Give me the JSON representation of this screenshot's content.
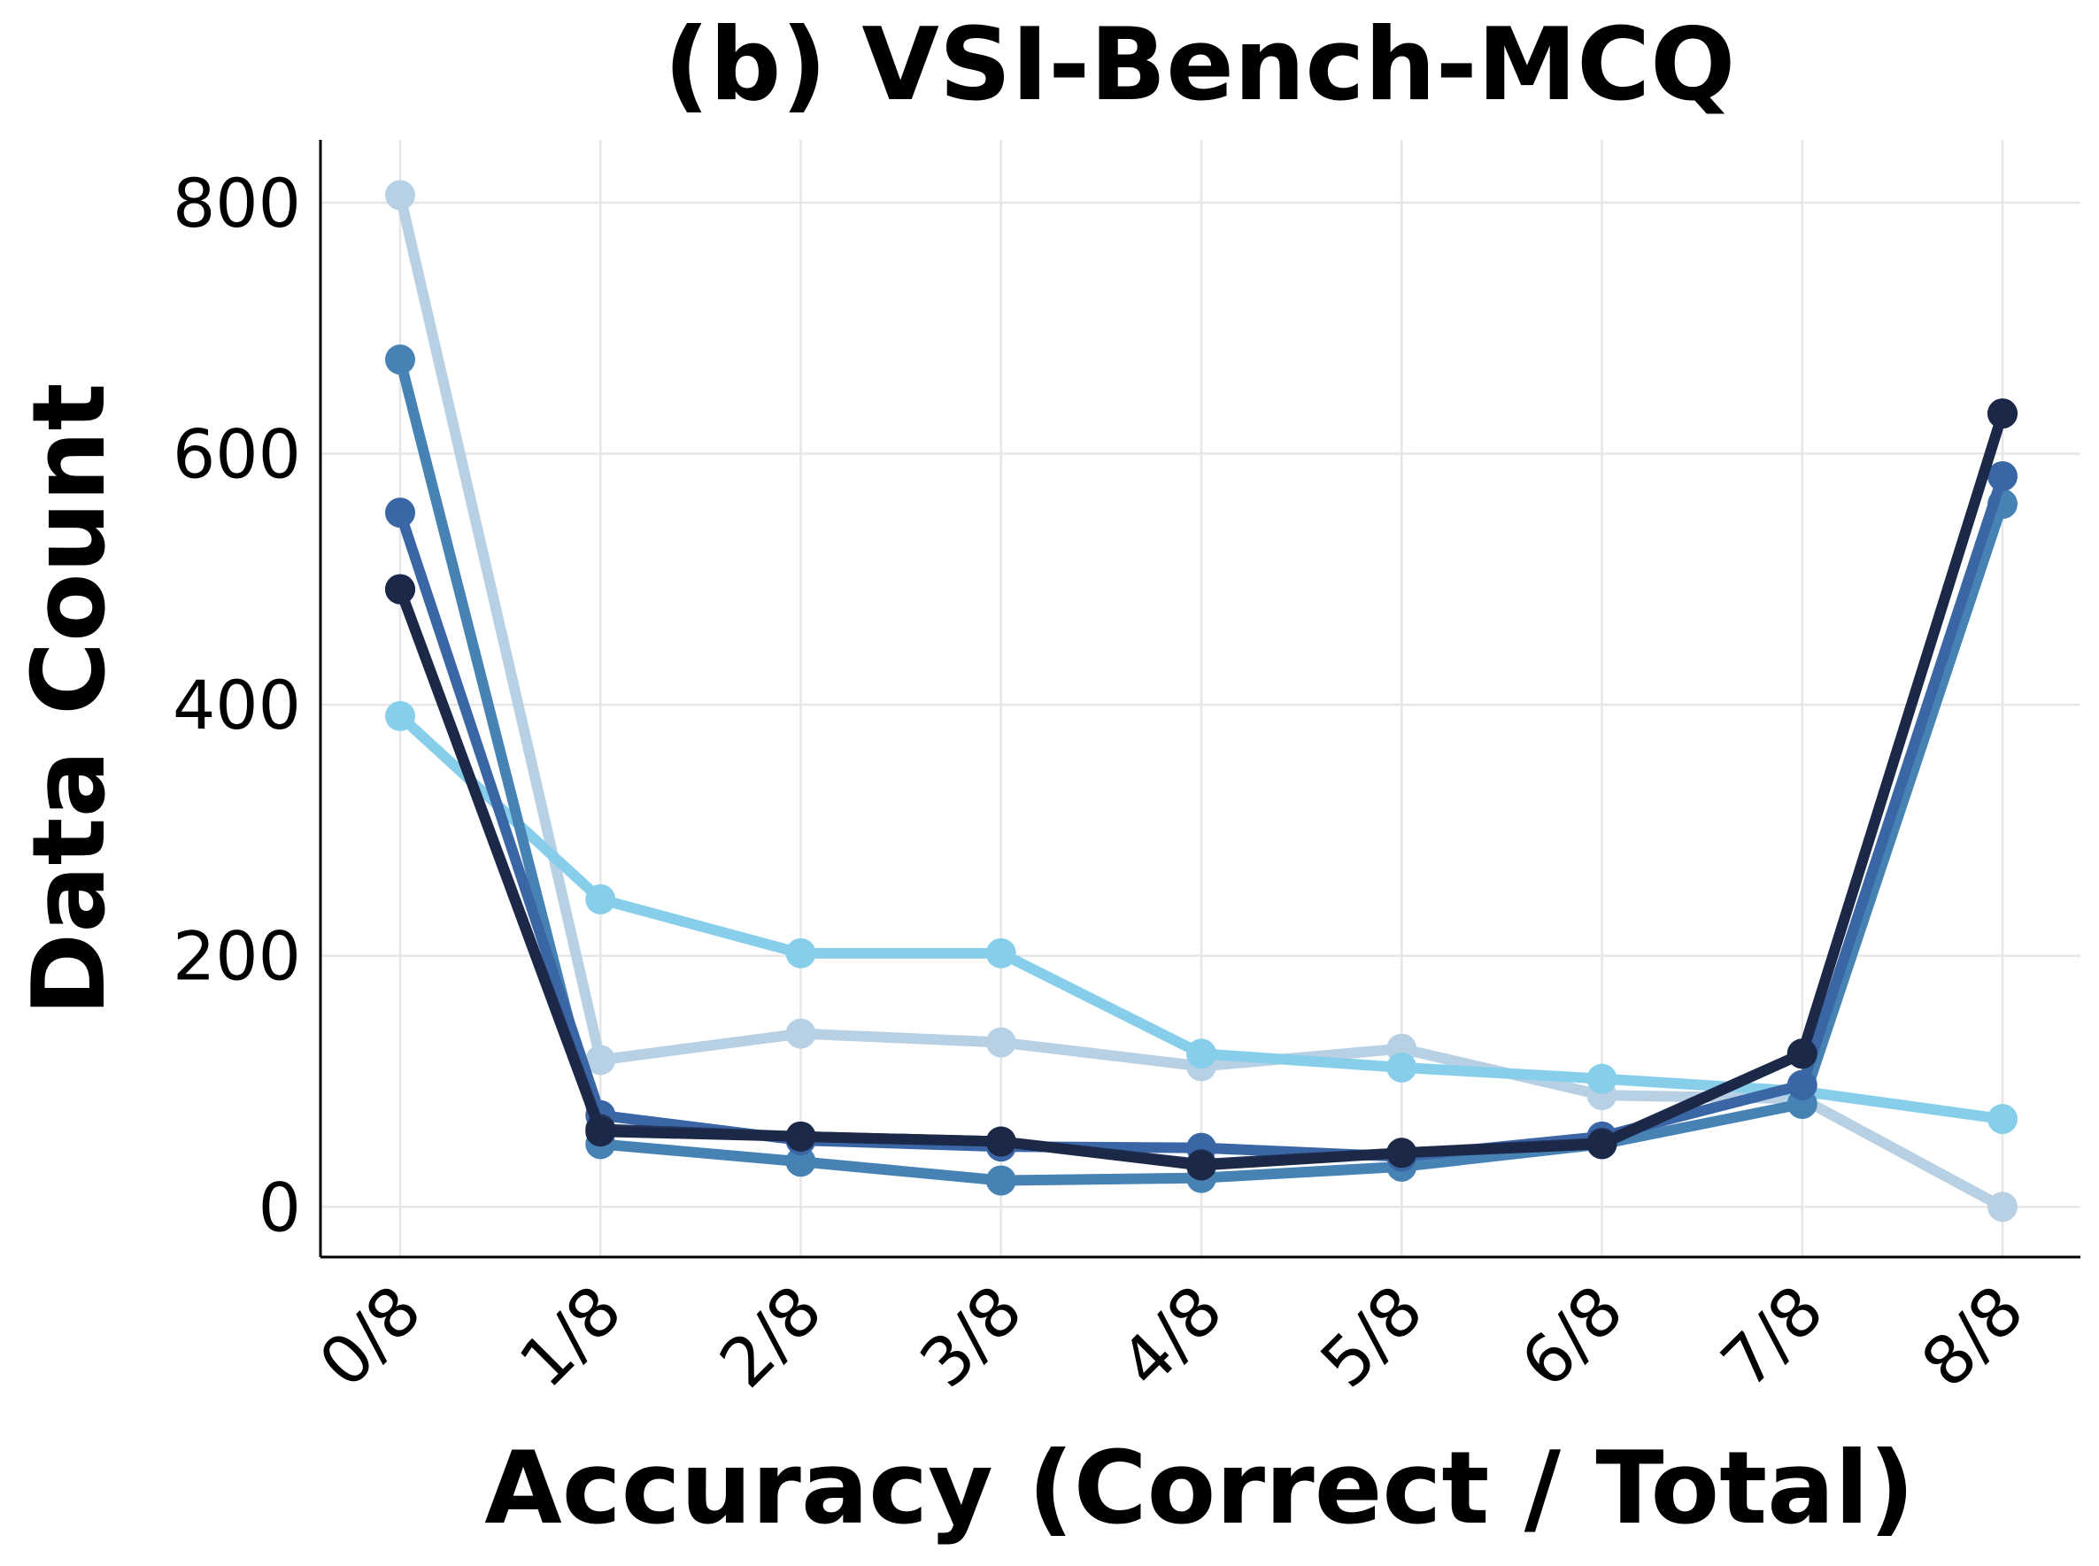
{
  "chart_data": {
    "type": "line",
    "title": "(b) VSI-Bench-MCQ",
    "xlabel": "Accuracy (Correct / Total)",
    "ylabel": "Data Count",
    "categories": [
      "0/8",
      "1/8",
      "2/8",
      "3/8",
      "4/8",
      "5/8",
      "6/8",
      "7/8",
      "8/8"
    ],
    "ylim": [
      -40,
      850
    ],
    "yticks": [
      0,
      200,
      400,
      600,
      800
    ],
    "grid": true,
    "series": [
      {
        "name": "series-1",
        "color": "#b8d0e3",
        "values": [
          806,
          117,
          138,
          131,
          112,
          126,
          89,
          86,
          0
        ]
      },
      {
        "name": "series-2",
        "color": "#87ceeb",
        "values": [
          391,
          245,
          202,
          202,
          122,
          111,
          102,
          92,
          70
        ]
      },
      {
        "name": "series-3",
        "color": "#4682b4",
        "values": [
          675,
          50,
          36,
          21,
          23,
          32,
          50,
          82,
          560
        ]
      },
      {
        "name": "series-4",
        "color": "#3a66a6",
        "values": [
          553,
          73,
          53,
          48,
          47,
          40,
          56,
          97,
          582
        ]
      },
      {
        "name": "series-5",
        "color": "#24365e",
        "values": [
          492,
          62,
          56,
          52,
          34,
          43,
          51,
          122,
          632
        ]
      },
      {
        "name": "series-6",
        "color": "#1c2848",
        "values": [
          492,
          60,
          56,
          52,
          33,
          43,
          50,
          122,
          632
        ]
      }
    ]
  }
}
